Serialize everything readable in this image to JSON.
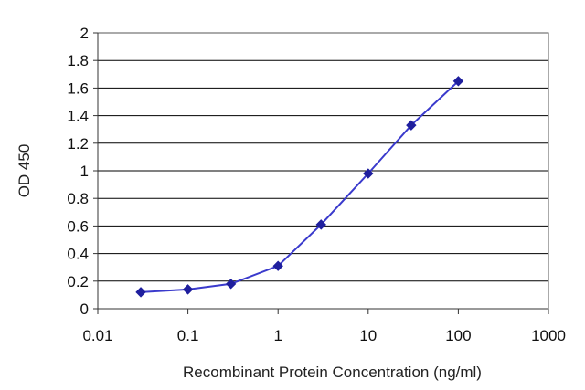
{
  "chart_data": {
    "type": "line",
    "xscale": "log",
    "xlabel": "Recombinant Protein Concentration (ng/ml)",
    "ylabel": "OD 450",
    "xlim": [
      0.01,
      1000
    ],
    "ylim": [
      0,
      2
    ],
    "x_ticks": [
      "0.01",
      "0.1",
      "1",
      "10",
      "100",
      "1000"
    ],
    "y_ticks": [
      "0",
      "0.2",
      "0.4",
      "0.6",
      "0.8",
      "1",
      "1.2",
      "1.4",
      "1.6",
      "1.8",
      "2"
    ],
    "grid": "horizontal",
    "legend": "none",
    "series": [
      {
        "x": [
          0.03,
          0.1,
          0.3,
          1,
          3,
          10,
          30,
          100
        ],
        "y": [
          0.12,
          0.14,
          0.18,
          0.31,
          0.61,
          0.98,
          1.33,
          1.65
        ]
      }
    ],
    "colors": {
      "line": "#3a3acc",
      "marker": "#1f1f9e",
      "grid": "#000000",
      "background": "#ffffff"
    }
  }
}
